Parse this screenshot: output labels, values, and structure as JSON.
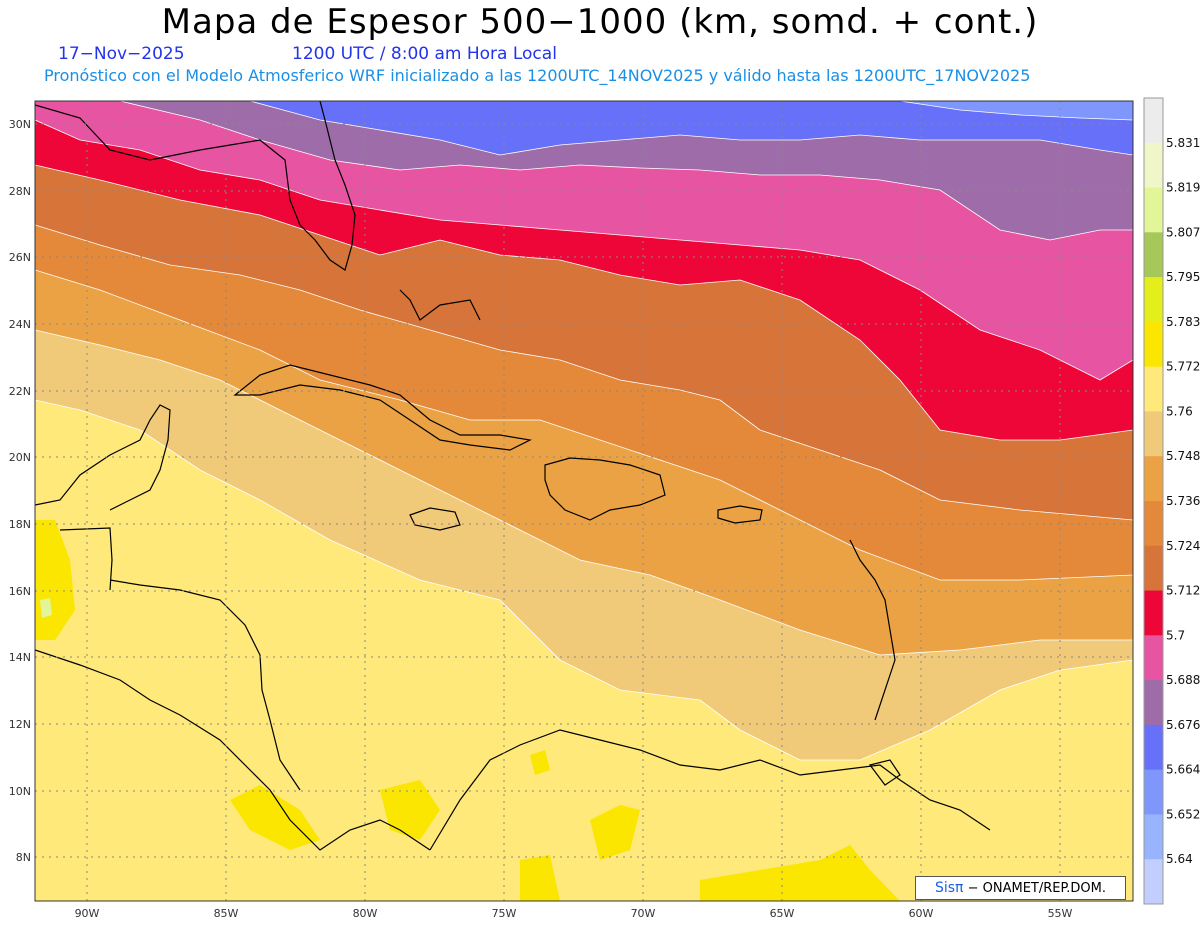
{
  "title": "Mapa de Espesor 500−1000 (km, somd. + cont.)",
  "date": "17−Nov−2025",
  "time": "1200 UTC / 8:00 am Hora Local",
  "forecast_info": "Pronóstico con el Modelo Atmosferico WRF inicializado a las 1200UTC_14NOV2025 y válido hasta las  1200UTC_17NOV2025",
  "lat_labels": [
    "30N",
    "28N",
    "26N",
    "24N",
    "22N",
    "20N",
    "18N",
    "16N",
    "14N",
    "12N",
    "10N",
    "8N"
  ],
  "lon_labels": [
    "90W",
    "85W",
    "80W",
    "75W",
    "70W",
    "65W",
    "60W",
    "55W"
  ],
  "colorbar": {
    "labels": [
      "5.831",
      "5.819",
      "5.807",
      "5.795",
      "5.783",
      "5.772",
      "5.76",
      "5.748",
      "5.736",
      "5.724",
      "5.712",
      "5.7",
      "5.688",
      "5.676",
      "5.664",
      "5.652",
      "5.64"
    ],
    "colors": [
      "#ececec",
      "#f0f6c8",
      "#e2f598",
      "#a6c858",
      "#e4ee1a",
      "#fae600",
      "#fee97a",
      "#f0ca78",
      "#eba245",
      "#e48839",
      "#d77439",
      "#ee0638",
      "#e754a1",
      "#9d6ca9",
      "#6670f8",
      "#7f97fc",
      "#98b4fe",
      "#c2cefe"
    ]
  },
  "credit": {
    "logo": "Sisπ",
    "text": " − ONAMET/REP.DOM."
  },
  "colors": {
    "band_5640": "#f0ca78",
    "band_5652": "#eba245",
    "band_5664": "#e48839",
    "band_5676": "#d77439",
    "band_5688": "#ee0638",
    "band_5700": "#e754a1",
    "band_5712": "#9d6ca9",
    "band_5724": "#6670f8",
    "band_top": "#7f97fc",
    "background_yellow": "#fee97a",
    "bright_yellow": "#fae600"
  }
}
